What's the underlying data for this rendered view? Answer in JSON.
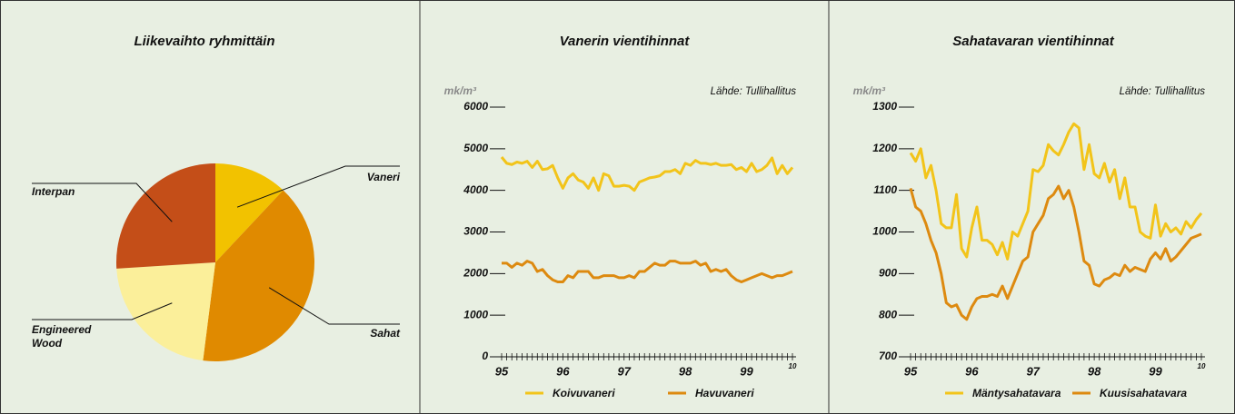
{
  "chart_data": [
    {
      "type": "pie",
      "title": "Liikevaihto ryhmittäin",
      "categories": [
        "Vaneri",
        "Sahat",
        "Engineered Wood",
        "Interpan"
      ],
      "values": [
        12,
        40,
        22,
        26
      ],
      "colors": [
        "#f2c200",
        "#e08a00",
        "#fbef9a",
        "#c44e18"
      ]
    },
    {
      "type": "line",
      "title": "Vanerin vientihinnat",
      "y_label": "mk/m³",
      "source": "Lähde: Tullihallitus",
      "categories": [
        "95",
        null,
        null,
        null,
        null,
        null,
        null,
        null,
        null,
        null,
        null,
        null,
        "96",
        null,
        null,
        null,
        null,
        null,
        null,
        null,
        null,
        null,
        null,
        null,
        "97",
        null,
        null,
        null,
        null,
        null,
        null,
        null,
        null,
        null,
        null,
        null,
        "98",
        null,
        null,
        null,
        null,
        null,
        null,
        null,
        null,
        null,
        null,
        null,
        "99",
        null,
        null,
        null,
        null,
        null,
        null,
        null,
        null,
        "10"
      ],
      "series": [
        {
          "name": "Koivuvaneri",
          "color": "#f2c41a",
          "values": [
            4800,
            4650,
            4620,
            4680,
            4650,
            4700,
            4550,
            4700,
            4500,
            4520,
            4600,
            4300,
            4050,
            4300,
            4400,
            4250,
            4200,
            4050,
            4300,
            4000,
            4400,
            4350,
            4100,
            4100,
            4120,
            4100,
            4000,
            4200,
            4250,
            4300,
            4320,
            4350,
            4450,
            4450,
            4500,
            4400,
            4650,
            4600,
            4720,
            4650,
            4650,
            4620,
            4650,
            4600,
            4600,
            4620,
            4500,
            4550,
            4450,
            4650,
            4450,
            4500,
            4600,
            4780,
            4400,
            4600,
            4400,
            4550
          ]
        },
        {
          "name": "Havuvaneri",
          "color": "#dd8a10",
          "values": [
            2250,
            2250,
            2150,
            2250,
            2200,
            2300,
            2250,
            2050,
            2100,
            1950,
            1850,
            1800,
            1800,
            1950,
            1900,
            2050,
            2050,
            2050,
            1900,
            1900,
            1950,
            1950,
            1950,
            1900,
            1900,
            1950,
            1900,
            2050,
            2050,
            2150,
            2250,
            2200,
            2200,
            2300,
            2300,
            2250,
            2250,
            2250,
            2300,
            2200,
            2250,
            2050,
            2100,
            2050,
            2100,
            1950,
            1850,
            1800,
            1850,
            1900,
            1950,
            2000,
            1950,
            1900,
            1950,
            1950,
            2000,
            2050
          ]
        }
      ],
      "ylim": [
        0,
        6000
      ],
      "yticks": [
        0,
        1000,
        2000,
        3000,
        4000,
        5000,
        6000
      ]
    },
    {
      "type": "line",
      "title": "Sahatavaran vientihinnat",
      "y_label": "mk/m³",
      "source": "Lähde: Tullihallitus",
      "categories": [
        "95",
        null,
        null,
        null,
        null,
        null,
        null,
        null,
        null,
        null,
        null,
        null,
        "96",
        null,
        null,
        null,
        null,
        null,
        null,
        null,
        null,
        null,
        null,
        null,
        "97",
        null,
        null,
        null,
        null,
        null,
        null,
        null,
        null,
        null,
        null,
        null,
        "98",
        null,
        null,
        null,
        null,
        null,
        null,
        null,
        null,
        null,
        null,
        null,
        "99",
        null,
        null,
        null,
        null,
        null,
        null,
        null,
        null,
        "10"
      ],
      "series": [
        {
          "name": "Mäntysahatavara",
          "color": "#f2c41a",
          "values": [
            1190,
            1170,
            1200,
            1130,
            1160,
            1100,
            1020,
            1010,
            1010,
            1090,
            960,
            940,
            1010,
            1060,
            980,
            980,
            970,
            945,
            975,
            935,
            1000,
            990,
            1020,
            1050,
            1150,
            1145,
            1160,
            1210,
            1195,
            1185,
            1210,
            1240,
            1260,
            1250,
            1150,
            1210,
            1140,
            1130,
            1165,
            1120,
            1150,
            1080,
            1130,
            1060,
            1060,
            1000,
            990,
            985,
            1065,
            990,
            1020,
            1000,
            1010,
            995,
            1025,
            1010,
            1030,
            1045
          ]
        },
        {
          "name": "Kuusisahatavara",
          "color": "#dd8a10",
          "values": [
            1105,
            1060,
            1050,
            1020,
            980,
            950,
            900,
            830,
            820,
            825,
            800,
            790,
            820,
            840,
            845,
            845,
            850,
            845,
            870,
            840,
            870,
            900,
            930,
            940,
            1000,
            1020,
            1040,
            1080,
            1090,
            1110,
            1080,
            1100,
            1060,
            1000,
            930,
            920,
            875,
            870,
            885,
            890,
            900,
            895,
            920,
            905,
            915,
            910,
            905,
            935,
            950,
            935,
            960,
            930,
            940,
            955,
            970,
            985,
            990,
            995
          ]
        }
      ],
      "ylim": [
        700,
        1300
      ],
      "yticks": [
        700,
        800,
        900,
        1000,
        1100,
        1200,
        1300
      ]
    }
  ]
}
